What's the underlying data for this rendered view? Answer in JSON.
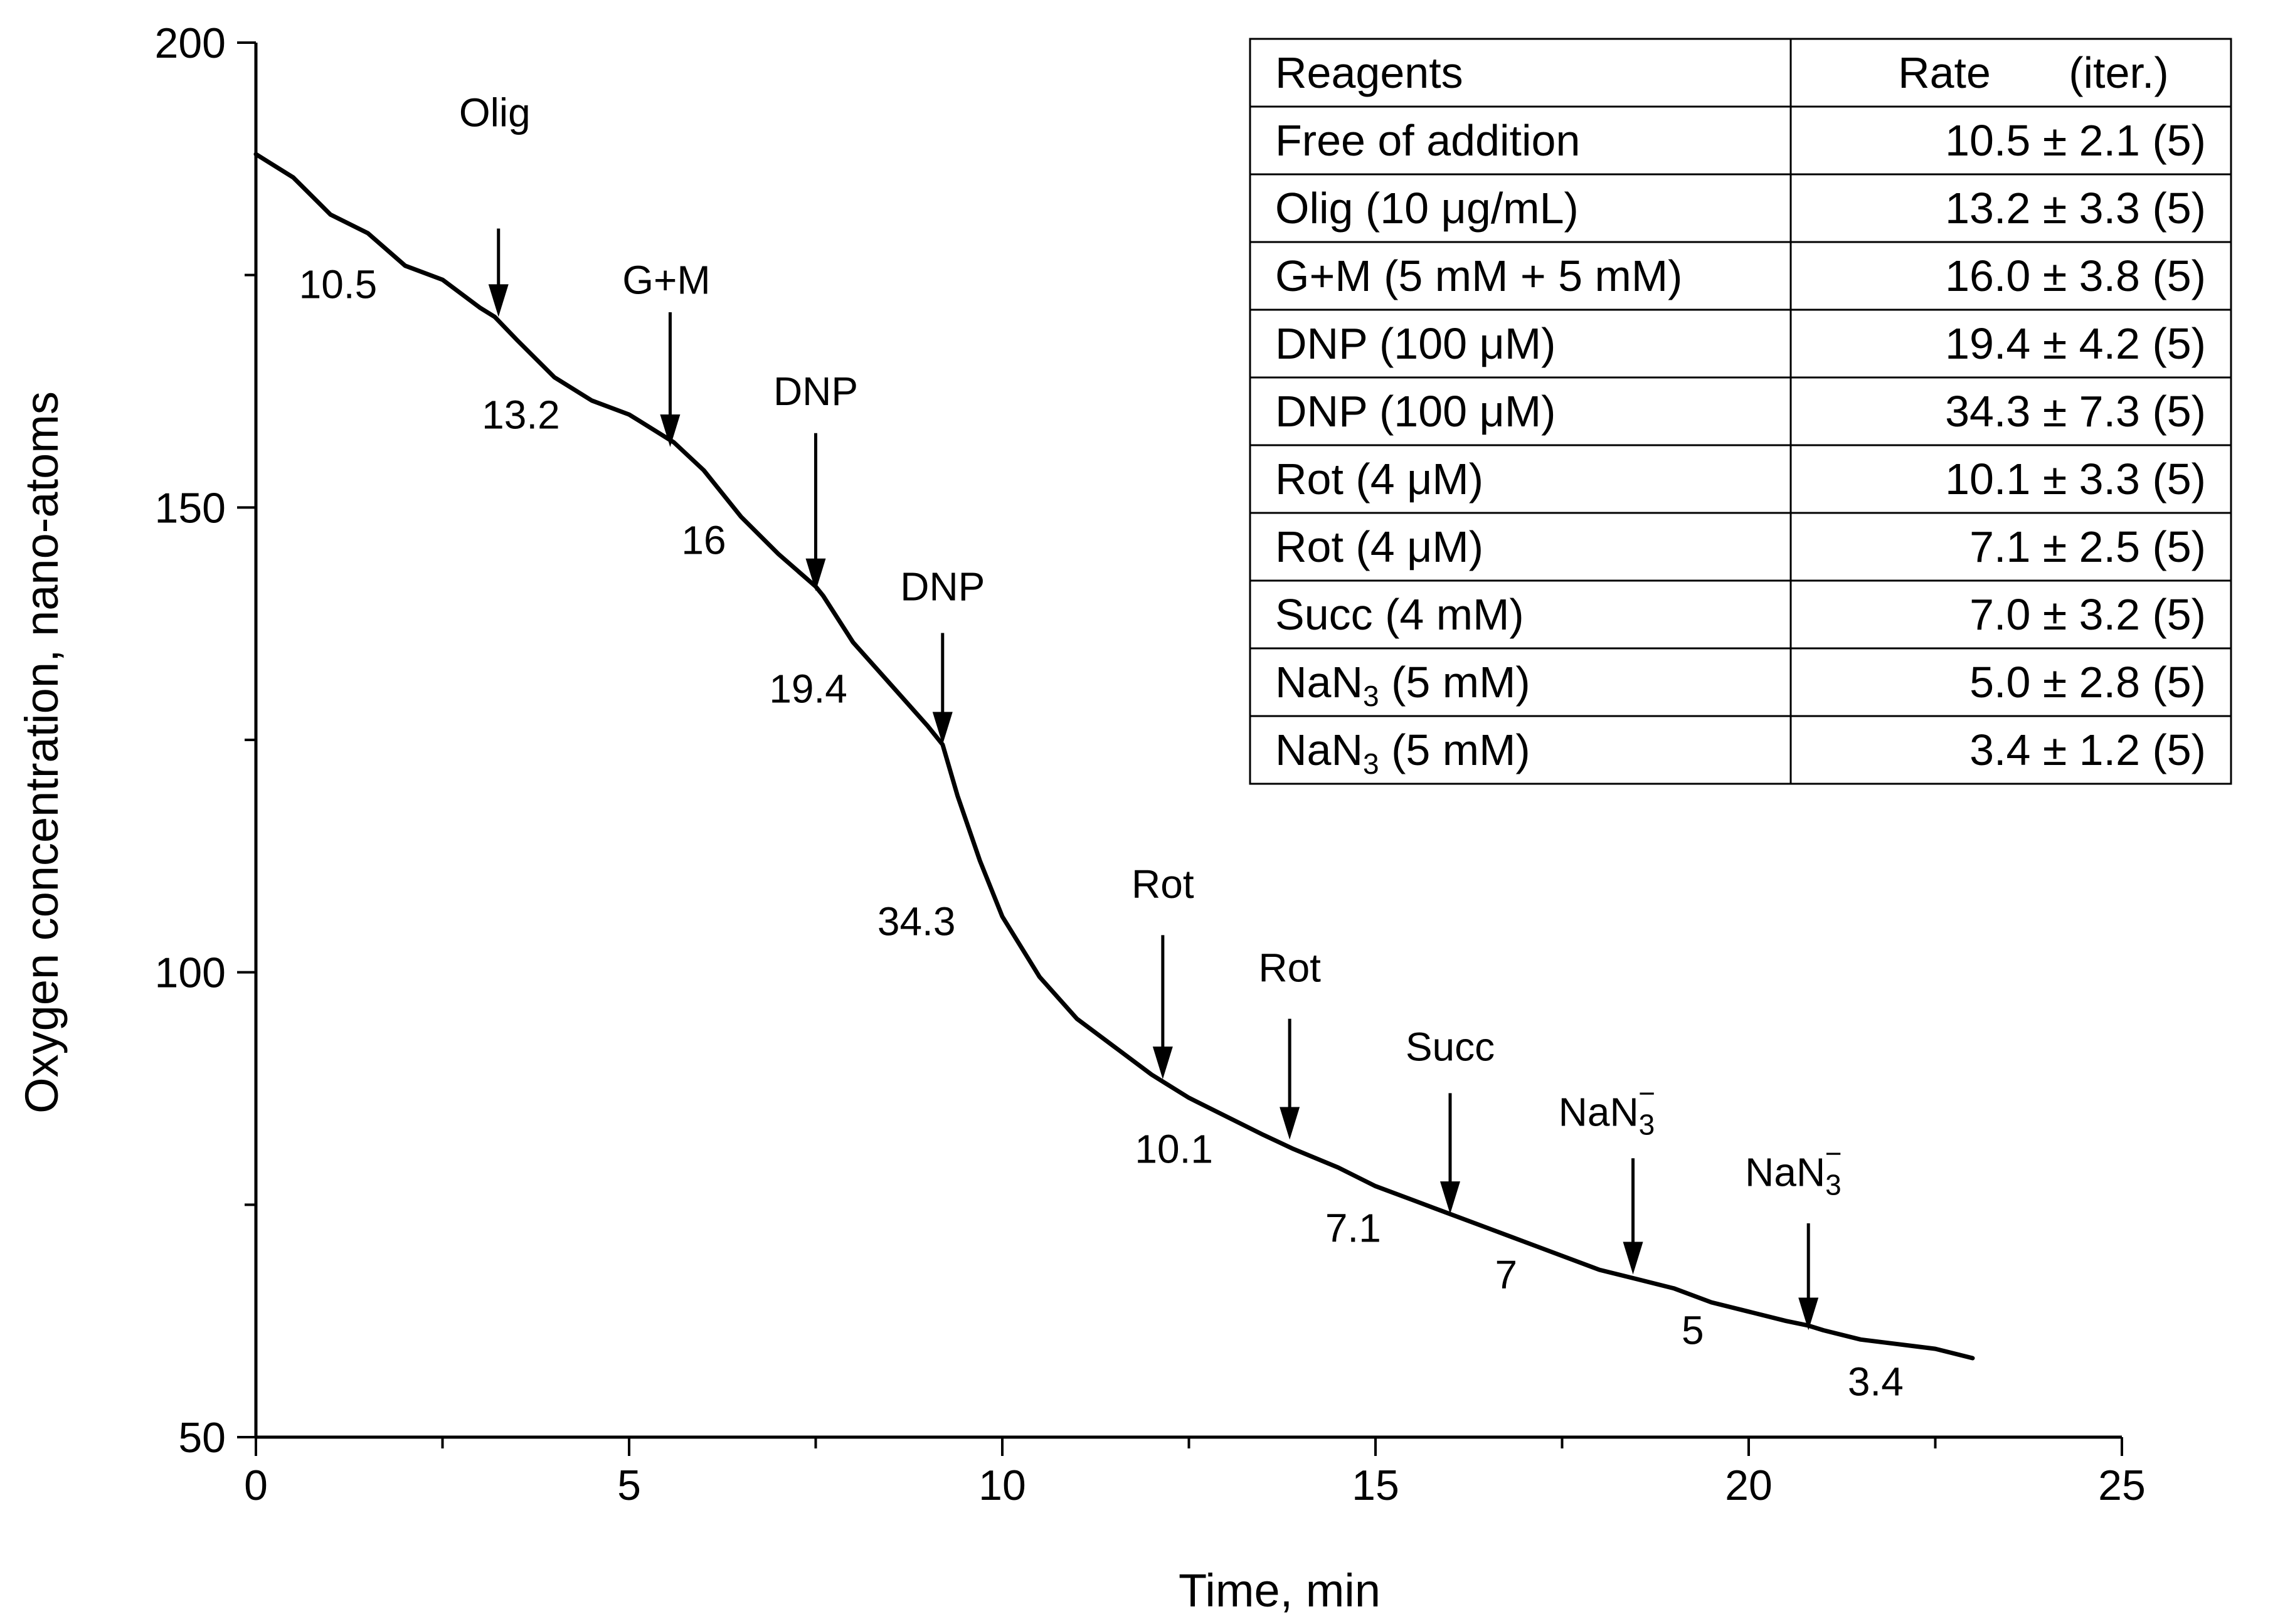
{
  "chart_data": {
    "type": "line",
    "title": "",
    "xlabel": "Time, min",
    "ylabel": "Oxygen concentration, nano-atoms",
    "xlim": [
      0,
      25
    ],
    "ylim": [
      50,
      200
    ],
    "x_major_ticks": [
      0,
      5,
      10,
      15,
      20,
      25
    ],
    "x_tick_labels": [
      "0",
      "5",
      "10",
      "15",
      "20",
      "25"
    ],
    "y_major_ticks": [
      50,
      100,
      150,
      200
    ],
    "y_tick_labels": [
      "50",
      "100",
      "150",
      "200"
    ],
    "series": [
      {
        "name": "Oxygen concentration",
        "color": "#000000",
        "x": [
          0.0,
          0.5,
          1.0,
          1.5,
          2.0,
          2.5,
          3.0,
          3.2,
          3.5,
          4.0,
          4.5,
          5.0,
          5.5,
          5.6,
          6.0,
          6.5,
          7.0,
          7.5,
          7.6,
          8.0,
          8.5,
          9.0,
          9.2,
          9.4,
          9.7,
          10.0,
          10.5,
          11.0,
          11.5,
          12.0,
          12.2,
          12.5,
          13.0,
          13.5,
          13.9,
          14.5,
          15.0,
          15.5,
          16.0,
          16.5,
          17.0,
          17.5,
          18.0,
          18.5,
          19.0,
          19.5,
          20.0,
          20.5,
          20.8,
          21.0,
          21.5,
          22.0,
          22.5,
          23.0
        ],
        "y": [
          188.0,
          185.5,
          181.5,
          179.5,
          176.0,
          174.5,
          171.5,
          170.5,
          168.0,
          164.0,
          161.5,
          160.0,
          157.5,
          157.0,
          154.0,
          149.0,
          145.0,
          141.5,
          140.5,
          135.5,
          131.0,
          126.5,
          124.5,
          119.0,
          112.0,
          106.0,
          99.5,
          95.0,
          92.0,
          89.0,
          88.0,
          86.5,
          84.5,
          82.5,
          81.0,
          79.0,
          77.0,
          75.5,
          74.0,
          72.5,
          71.0,
          69.5,
          68.0,
          67.0,
          66.0,
          64.5,
          63.5,
          62.5,
          62.0,
          61.5,
          60.5,
          60.0,
          59.5,
          58.5
        ]
      }
    ],
    "annotations": [
      {
        "label": "Olig",
        "x": 3.25,
        "tip_y": 170.5,
        "tail_y": 180.0,
        "text_y": 191.0,
        "label_x": 3.2
      },
      {
        "label": "G+M",
        "x": 5.55,
        "tip_y": 156.5,
        "tail_y": 171.0,
        "text_y": 173.0,
        "label_x": 5.5
      },
      {
        "label": "DNP",
        "x": 7.5,
        "tip_y": 141.0,
        "tail_y": 158.0,
        "text_y": 161.0,
        "label_x": 7.5
      },
      {
        "label": "DNP",
        "x": 9.2,
        "tip_y": 124.5,
        "tail_y": 136.5,
        "text_y": 140.0,
        "label_x": 9.2
      },
      {
        "label": "Rot",
        "x": 12.15,
        "tip_y": 88.5,
        "tail_y": 104.0,
        "text_y": 108.0,
        "label_x": 12.15
      },
      {
        "label": "Rot",
        "x": 13.85,
        "tip_y": 82.0,
        "tail_y": 95.0,
        "text_y": 99.0,
        "label_x": 13.85
      },
      {
        "label": "Succ",
        "x": 16.0,
        "tip_y": 74.0,
        "tail_y": 87.0,
        "text_y": 90.5,
        "label_x": 16.0
      },
      {
        "label": "NaN3-",
        "x": 18.45,
        "tip_y": 67.5,
        "tail_y": 80.0,
        "text_y": 83.5,
        "label_x": 18.1
      },
      {
        "label": "NaN3-",
        "x": 20.8,
        "tip_y": 61.5,
        "tail_y": 73.0,
        "text_y": 77.0,
        "label_x": 20.6
      }
    ],
    "rate_labels": [
      {
        "text": "10.5",
        "x": 1.1,
        "y": 172.5
      },
      {
        "text": "13.2",
        "x": 3.55,
        "y": 158.5
      },
      {
        "text": "16",
        "x": 6.0,
        "y": 145.0
      },
      {
        "text": "19.4",
        "x": 7.4,
        "y": 129.0
      },
      {
        "text": "34.3",
        "x": 8.85,
        "y": 104.0
      },
      {
        "text": "10.1",
        "x": 12.3,
        "y": 79.5
      },
      {
        "text": "7.1",
        "x": 14.7,
        "y": 71.0
      },
      {
        "text": "7",
        "x": 16.75,
        "y": 66.0
      },
      {
        "text": "5",
        "x": 19.25,
        "y": 60.0
      },
      {
        "text": "3.4",
        "x": 21.7,
        "y": 54.5
      }
    ]
  },
  "rate_table": {
    "header": {
      "reagent": "Reagents",
      "rate": "Rate",
      "iter": "(iter.)"
    },
    "rows": [
      {
        "reagent": "Free of addition",
        "rate": "10.5 ± 2.1 (5)"
      },
      {
        "reagent": "Olig (10 μg/mL)",
        "rate": "13.2 ± 3.3 (5)"
      },
      {
        "reagent": "G+M (5 mM + 5 mM)",
        "rate": "16.0 ± 3.8 (5)"
      },
      {
        "reagent": "DNP (100 μM)",
        "rate": "19.4 ± 4.2 (5)"
      },
      {
        "reagent": "DNP (100 μM)",
        "rate": "34.3 ± 7.3 (5)"
      },
      {
        "reagent": "Rot (4 μM)",
        "rate": "10.1 ± 3.3 (5)"
      },
      {
        "reagent": "Rot (4 μM)",
        "rate": "7.1 ± 2.5 (5)"
      },
      {
        "reagent": "Succ (4 mM)",
        "rate": "7.0 ± 3.2 (5)"
      },
      {
        "reagent": "NaN3 (5 mM)",
        "rate": "5.0 ± 2.8 (5)"
      },
      {
        "reagent": "NaN3 (5 mM)",
        "rate": "3.4 ± 1.2 (5)"
      }
    ]
  }
}
